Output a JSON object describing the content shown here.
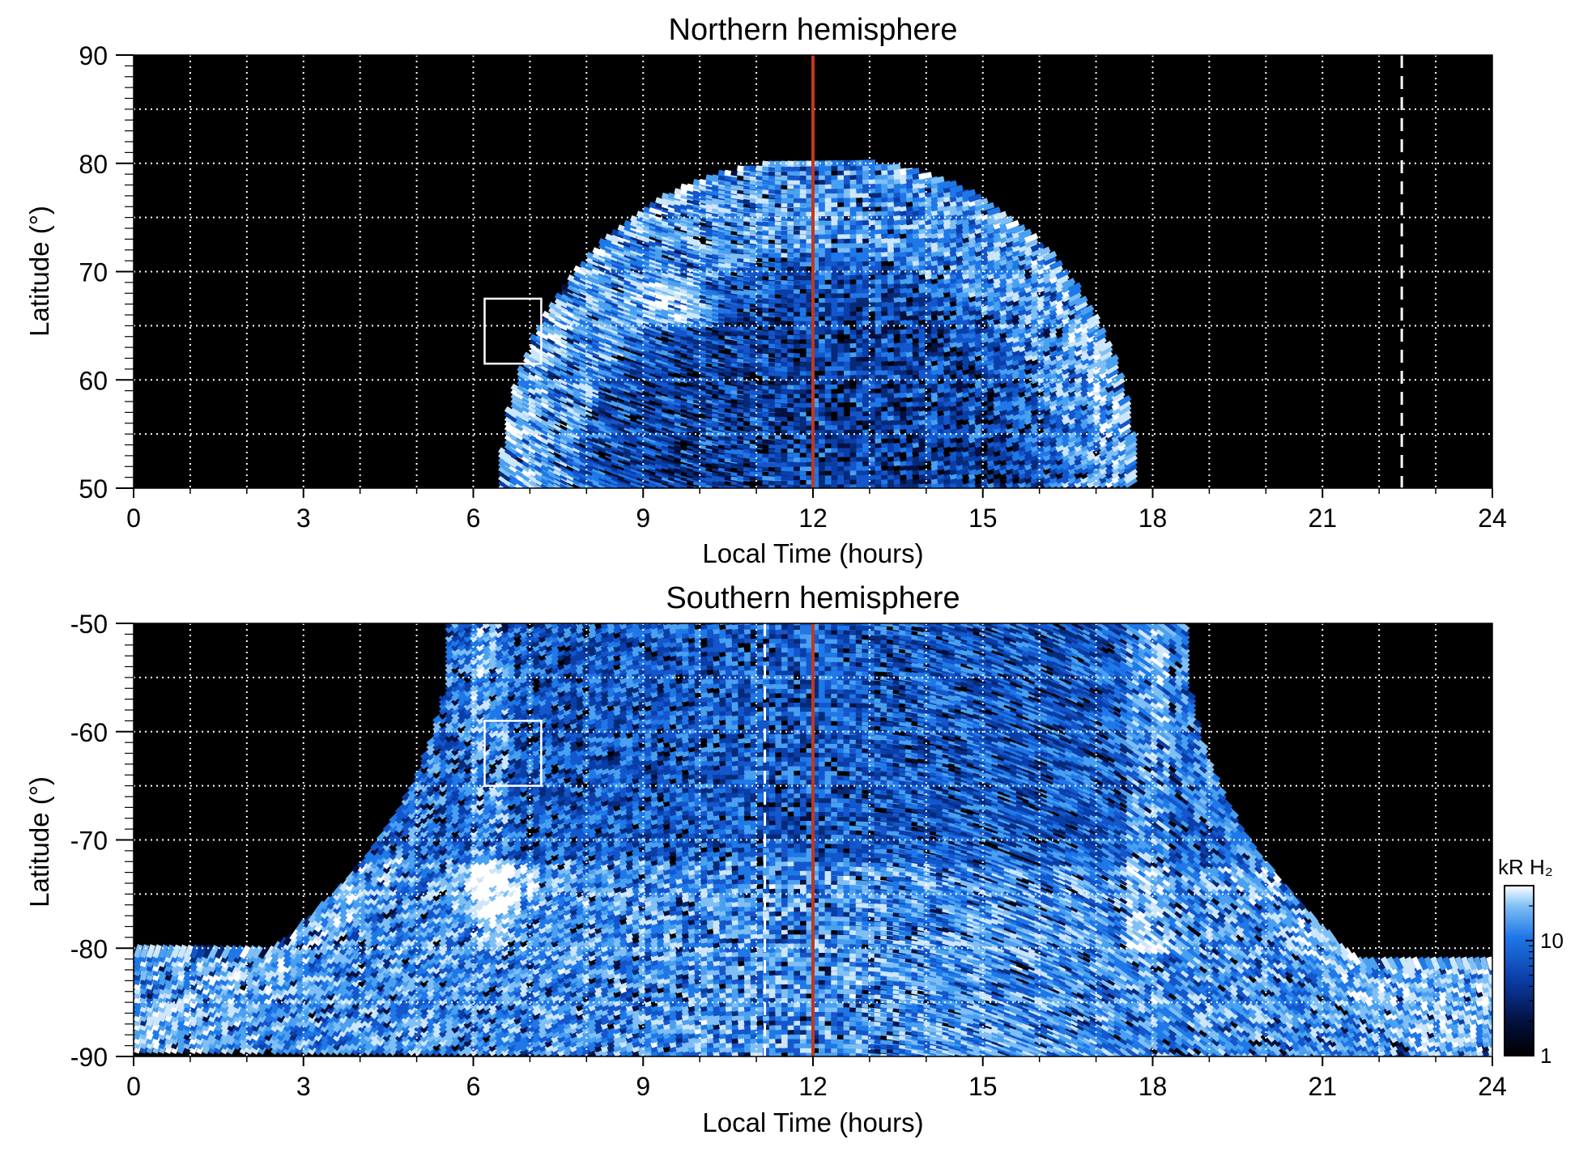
{
  "chart_data": [
    {
      "type": "heatmap",
      "title": "Northern hemisphere",
      "xlabel": "Local Time (hours)",
      "ylabel": "Latitude (°)",
      "xlim": [
        0,
        24
      ],
      "ylim": [
        50,
        90
      ],
      "xticks": [
        "0",
        "3",
        "6",
        "9",
        "12",
        "15",
        "18",
        "21",
        "24"
      ],
      "yticks": [
        "50",
        "60",
        "70",
        "80",
        "90"
      ],
      "grid": true,
      "noon_line": 12,
      "dashed_line": 22.4,
      "box": {
        "lt": [
          6.2,
          7.2
        ],
        "lat": [
          61.5,
          67.5
        ]
      },
      "emission_region": {
        "center_lt": 12,
        "lt_half_width_at_50": 5.2,
        "max_lat": 80
      },
      "bright_spot": {
        "lt": 9.5,
        "lat": 67
      }
    },
    {
      "type": "heatmap",
      "title": "Southern hemisphere",
      "xlabel": "Local Time (hours)",
      "ylabel": "Latitude (°)",
      "xlim": [
        0,
        24
      ],
      "ylim": [
        -90,
        -50
      ],
      "xticks": [
        "0",
        "3",
        "6",
        "9",
        "12",
        "15",
        "18",
        "21",
        "24"
      ],
      "yticks": [
        "-90",
        "-80",
        "-70",
        "-60",
        "-50"
      ],
      "grid": true,
      "noon_line": 12,
      "dashed_line": 11.15,
      "box": {
        "lt": [
          6.2,
          7.2
        ],
        "lat": [
          -65,
          -59
        ]
      },
      "emission_region": {
        "center_lt": 12,
        "lt_half_width_at_50": 6.5,
        "min_lat": -90
      },
      "bright_spot": {
        "lt": 6.3,
        "lat": -75
      }
    }
  ],
  "colorbar": {
    "label": "kR H₂",
    "ticks": [
      "1",
      "10"
    ],
    "tick_values": [
      1,
      10
    ],
    "range": [
      1,
      30
    ],
    "scale": "log",
    "colors": [
      "#000000",
      "#04103f",
      "#0a3ea8",
      "#1f78e8",
      "#7fbff5",
      "#ffffff"
    ]
  },
  "style": {
    "noon_line_color": "#c0391d",
    "grid_color": "#ffffff",
    "background": "#000000"
  }
}
